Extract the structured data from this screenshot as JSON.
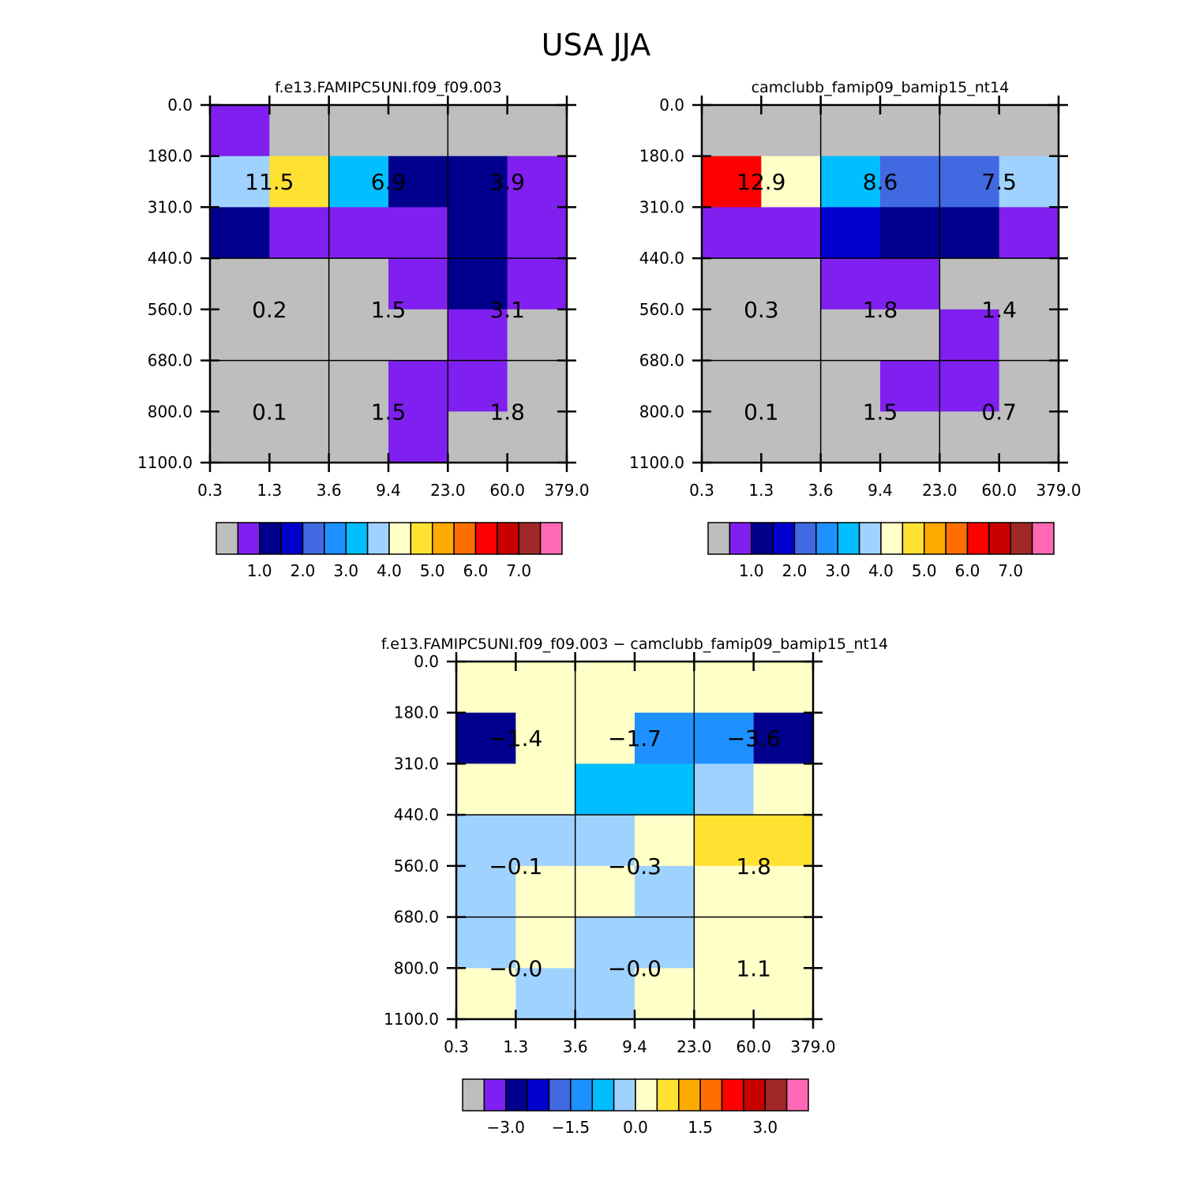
{
  "title": "USA JJA",
  "chart_data": [
    {
      "type": "heatmap",
      "title": "f.e13.FAMIPC5UNI.f09_f09.003",
      "x_tick_labels": [
        "0.3",
        "1.3",
        "3.6",
        "9.4",
        "23.0",
        "60.0",
        "379.0"
      ],
      "y_tick_labels": [
        "0.0",
        "180.0",
        "310.0",
        "440.0",
        "560.0",
        "680.0",
        "800.0",
        "1100.0"
      ],
      "cell_colors": [
        [
          "#8020F0",
          "#BEBEBE",
          "#BEBEBE",
          "#BEBEBE",
          "#BEBEBE",
          "#BEBEBE"
        ],
        [
          "#A0D2FF",
          "#FFE132",
          "#00BEFF",
          "#00008C",
          "#00008C",
          "#8020F0"
        ],
        [
          "#00008C",
          "#8020F0",
          "#8020F0",
          "#8020F0",
          "#00008C",
          "#8020F0"
        ],
        [
          "#BEBEBE",
          "#BEBEBE",
          "#BEBEBE",
          "#8020F0",
          "#00008C",
          "#8020F0"
        ],
        [
          "#BEBEBE",
          "#BEBEBE",
          "#BEBEBE",
          "#BEBEBE",
          "#8020F0",
          "#BEBEBE"
        ],
        [
          "#BEBEBE",
          "#BEBEBE",
          "#BEBEBE",
          "#8020F0",
          "#8020F0",
          "#BEBEBE"
        ],
        [
          "#BEBEBE",
          "#BEBEBE",
          "#BEBEBE",
          "#8020F0",
          "#BEBEBE",
          "#BEBEBE"
        ]
      ],
      "box_values": [
        [
          "11.5",
          "6.9",
          "3.9"
        ],
        [
          "0.2",
          "1.5",
          "3.1"
        ],
        [
          "0.1",
          "1.5",
          "1.8"
        ]
      ],
      "colorbar": {
        "colors": [
          "#BEBEBE",
          "#8020F0",
          "#00008C",
          "#0000CD",
          "#4169E1",
          "#1E90FF",
          "#00BEFF",
          "#A0D2FF",
          "#FFFFC8",
          "#FFE132",
          "#FFAA00",
          "#FF6E00",
          "#FF0000",
          "#C80000",
          "#A02828",
          "#FF69B4"
        ],
        "labels": [
          "1.0",
          "2.0",
          "3.0",
          "4.0",
          "5.0",
          "6.0",
          "7.0"
        ],
        "label_boundaries": [
          2,
          4,
          6,
          8,
          10,
          12,
          14
        ]
      }
    },
    {
      "type": "heatmap",
      "title": "camclubb_famip09_bamip15_nt14",
      "x_tick_labels": [
        "0.3",
        "1.3",
        "3.6",
        "9.4",
        "23.0",
        "60.0",
        "379.0"
      ],
      "y_tick_labels": [
        "0.0",
        "180.0",
        "310.0",
        "440.0",
        "560.0",
        "680.0",
        "800.0",
        "1100.0"
      ],
      "cell_colors": [
        [
          "#BEBEBE",
          "#BEBEBE",
          "#BEBEBE",
          "#BEBEBE",
          "#BEBEBE",
          "#BEBEBE"
        ],
        [
          "#FF0000",
          "#FFFFC8",
          "#00BEFF",
          "#4169E1",
          "#4169E1",
          "#A0D2FF"
        ],
        [
          "#8020F0",
          "#8020F0",
          "#0000CD",
          "#00008C",
          "#00008C",
          "#8020F0"
        ],
        [
          "#BEBEBE",
          "#BEBEBE",
          "#8020F0",
          "#8020F0",
          "#BEBEBE",
          "#BEBEBE"
        ],
        [
          "#BEBEBE",
          "#BEBEBE",
          "#BEBEBE",
          "#BEBEBE",
          "#8020F0",
          "#BEBEBE"
        ],
        [
          "#BEBEBE",
          "#BEBEBE",
          "#BEBEBE",
          "#8020F0",
          "#8020F0",
          "#BEBEBE"
        ],
        [
          "#BEBEBE",
          "#BEBEBE",
          "#BEBEBE",
          "#BEBEBE",
          "#BEBEBE",
          "#BEBEBE"
        ]
      ],
      "box_values": [
        [
          "12.9",
          "8.6",
          "7.5"
        ],
        [
          "0.3",
          "1.8",
          "1.4"
        ],
        [
          "0.1",
          "1.5",
          "0.7"
        ]
      ],
      "colorbar": {
        "colors": [
          "#BEBEBE",
          "#8020F0",
          "#00008C",
          "#0000CD",
          "#4169E1",
          "#1E90FF",
          "#00BEFF",
          "#A0D2FF",
          "#FFFFC8",
          "#FFE132",
          "#FFAA00",
          "#FF6E00",
          "#FF0000",
          "#C80000",
          "#A02828",
          "#FF69B4"
        ],
        "labels": [
          "1.0",
          "2.0",
          "3.0",
          "4.0",
          "5.0",
          "6.0",
          "7.0"
        ],
        "label_boundaries": [
          2,
          4,
          6,
          8,
          10,
          12,
          14
        ]
      }
    },
    {
      "type": "heatmap",
      "title": "f.e13.FAMIPC5UNI.f09_f09.003 − camclubb_famip09_bamip15_nt14",
      "x_tick_labels": [
        "0.3",
        "1.3",
        "3.6",
        "9.4",
        "23.0",
        "60.0",
        "379.0"
      ],
      "y_tick_labels": [
        "0.0",
        "180.0",
        "310.0",
        "440.0",
        "560.0",
        "680.0",
        "800.0",
        "1100.0"
      ],
      "cell_colors": [
        [
          "#FFFFC8",
          "#FFFFC8",
          "#FFFFC8",
          "#FFFFC8",
          "#FFFFC8",
          "#FFFFC8"
        ],
        [
          "#00008C",
          "#FFFFC8",
          "#FFFFC8",
          "#1E90FF",
          "#1E90FF",
          "#00008C"
        ],
        [
          "#FFFFC8",
          "#FFFFC8",
          "#00BEFF",
          "#00BEFF",
          "#A0D2FF",
          "#FFFFC8"
        ],
        [
          "#A0D2FF",
          "#A0D2FF",
          "#A0D2FF",
          "#FFFFC8",
          "#FFE132",
          "#FFE132"
        ],
        [
          "#A0D2FF",
          "#FFFFC8",
          "#FFFFC8",
          "#A0D2FF",
          "#FFFFC8",
          "#FFFFC8"
        ],
        [
          "#A0D2FF",
          "#FFFFC8",
          "#A0D2FF",
          "#A0D2FF",
          "#FFFFC8",
          "#FFFFC8"
        ],
        [
          "#FFFFC8",
          "#A0D2FF",
          "#A0D2FF",
          "#FFFFC8",
          "#FFFFC8",
          "#FFFFC8"
        ]
      ],
      "box_values": [
        [
          "−1.4",
          "−1.7",
          "−3.6"
        ],
        [
          "−0.1",
          "−0.3",
          "1.8"
        ],
        [
          "−0.0",
          "−0.0",
          "1.1"
        ]
      ],
      "colorbar": {
        "colors": [
          "#BEBEBE",
          "#8020F0",
          "#00008C",
          "#0000CD",
          "#4169E1",
          "#1E90FF",
          "#00BEFF",
          "#A0D2FF",
          "#FFFFC8",
          "#FFE132",
          "#FFAA00",
          "#FF6E00",
          "#FF0000",
          "#C80000",
          "#A02828",
          "#FF69B4"
        ],
        "labels": [
          "−3.0",
          "−1.5",
          "0.0",
          "1.5",
          "3.0"
        ],
        "label_boundaries": [
          2,
          5,
          8,
          11,
          14
        ]
      }
    }
  ]
}
